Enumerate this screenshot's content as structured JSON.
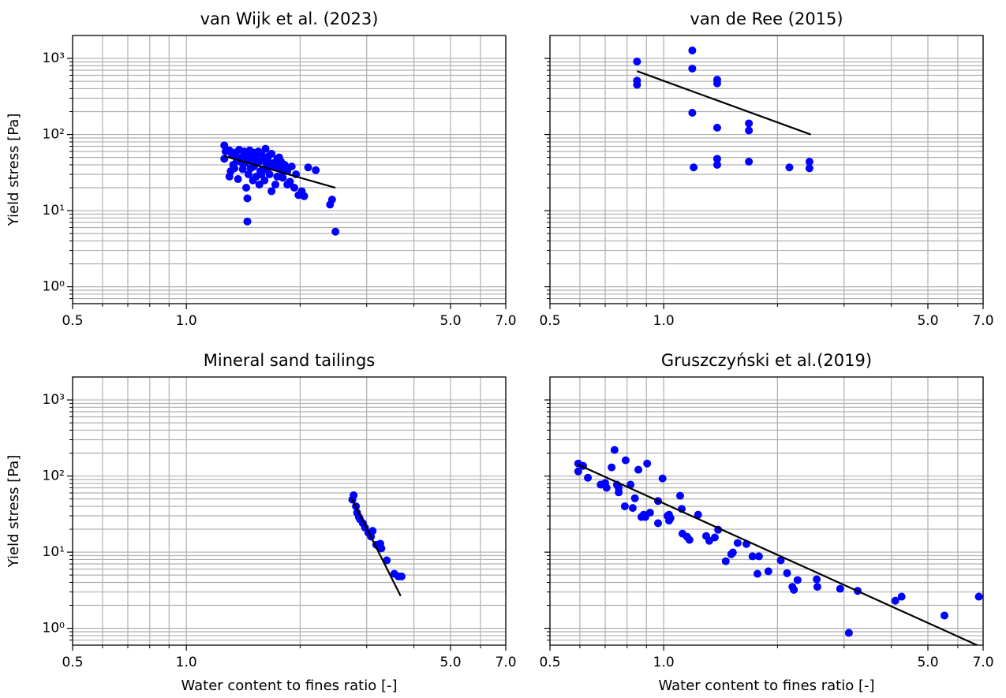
{
  "chart_data": [
    {
      "type": "scatter",
      "title": "van Wijk et al. (2023)",
      "ylabel": "Yield stress [Pa]",
      "xlog": true,
      "ylog": true,
      "grid": true,
      "ytick_labels": true,
      "xlim": [
        0.5,
        7.0
      ],
      "ylim": [
        0.6,
        2000
      ],
      "xticks": [
        0.5,
        {
          "value": 1,
          "label": "1.0"
        },
        {
          "value": 5,
          "label": "5.0"
        },
        {
          "value": 7,
          "label": "7.0"
        }
      ],
      "yticks": [
        {
          "value": 1,
          "label": "10⁰"
        },
        {
          "value": 10,
          "label": "10¹"
        },
        {
          "value": 100,
          "label": "10²"
        },
        {
          "value": 1000,
          "label": "10³"
        }
      ],
      "xminorticks": [
        0.6,
        0.7,
        0.8,
        0.9,
        2,
        3,
        4,
        6
      ],
      "yminorticks": [
        0.7,
        0.8,
        0.9,
        2,
        3,
        4,
        5,
        6,
        7,
        8,
        9,
        20,
        30,
        40,
        50,
        60,
        70,
        80,
        90,
        200,
        300,
        400,
        500,
        600,
        700,
        800,
        900
      ],
      "points": {
        "color": "#0000ff",
        "x": [
          1.26,
          1.27,
          1.3,
          1.32,
          1.33,
          1.35,
          1.36,
          1.38,
          1.4,
          1.41,
          1.42,
          1.43,
          1.45,
          1.46,
          1.47,
          1.48,
          1.5,
          1.51,
          1.52,
          1.53,
          1.55,
          1.56,
          1.57,
          1.58,
          1.6,
          1.61,
          1.62,
          1.63,
          1.65,
          1.66,
          1.68,
          1.7,
          1.72,
          1.74,
          1.76,
          1.78,
          1.8,
          1.82,
          1.85,
          1.88,
          1.9,
          1.93,
          1.95,
          1.98,
          2.02,
          2.05,
          1.3,
          1.34,
          1.37,
          1.4,
          1.44,
          1.48,
          1.52,
          1.56,
          1.6,
          1.64,
          1.68,
          1.72,
          1.76,
          1.8,
          1.85,
          1.35,
          1.42,
          1.5,
          1.58,
          1.66,
          1.74,
          1.31,
          1.45,
          1.62,
          1.26,
          1.45,
          2.1,
          2.2,
          2.4,
          2.43,
          2.48
        ],
        "y": [
          48,
          60,
          62,
          55,
          40,
          58,
          45,
          63,
          50,
          35,
          60,
          42,
          55,
          30,
          62,
          48,
          58,
          38,
          52,
          28,
          60,
          44,
          33,
          55,
          47,
          25,
          65,
          40,
          52,
          30,
          56,
          42,
          22,
          48,
          36,
          44,
          27,
          40,
          33,
          24,
          38,
          20,
          30,
          16,
          18,
          15.5,
          28,
          36,
          26,
          43,
          20,
          36,
          45,
          22,
          35,
          45,
          18,
          38,
          50,
          33,
          22,
          52,
          46,
          25,
          30,
          38,
          28,
          33,
          14.5,
          35,
          72,
          7.2,
          37,
          34,
          12,
          14,
          5.3
        ]
      },
      "fit": {
        "color": "#000000",
        "x": [
          1.26,
          2.48
        ],
        "y": [
          52,
          20
        ]
      }
    },
    {
      "type": "scatter",
      "title": "van de Ree (2015)",
      "xlog": true,
      "ylog": true,
      "grid": true,
      "ytick_labels": false,
      "xlim": [
        0.5,
        7.0
      ],
      "ylim": [
        0.6,
        2000
      ],
      "xticks": [
        0.5,
        {
          "value": 1,
          "label": "1.0"
        },
        {
          "value": 5,
          "label": "5.0"
        },
        {
          "value": 7,
          "label": "7.0"
        }
      ],
      "yticks": [
        1,
        10,
        100,
        1000
      ],
      "xminorticks": [
        0.6,
        0.7,
        0.8,
        0.9,
        2,
        3,
        4,
        6
      ],
      "yminorticks": [
        0.7,
        0.8,
        0.9,
        2,
        3,
        4,
        5,
        6,
        7,
        8,
        9,
        20,
        30,
        40,
        50,
        60,
        70,
        80,
        90,
        200,
        300,
        400,
        500,
        600,
        700,
        800,
        900
      ],
      "points": {
        "color": "#0000ff",
        "x": [
          0.85,
          0.85,
          0.85,
          1.19,
          1.19,
          1.19,
          1.2,
          1.385,
          1.385,
          1.385,
          1.385,
          1.385,
          1.68,
          1.68,
          1.68,
          2.15,
          2.43,
          2.43
        ],
        "y": [
          910,
          510,
          450,
          1270,
          735,
          193,
          37,
          525,
          470,
          123,
          48,
          40,
          140,
          113,
          44,
          37,
          44,
          36
        ]
      },
      "fit": {
        "color": "#000000",
        "x": [
          0.85,
          2.45
        ],
        "y": [
          680,
          100
        ]
      }
    },
    {
      "type": "scatter",
      "title": "Mineral sand tailings",
      "xlabel": "Water content to fines ratio [-]",
      "ylabel": "Yield stress [Pa]",
      "xlog": true,
      "ylog": true,
      "grid": true,
      "ytick_labels": true,
      "xlim": [
        0.5,
        7.0
      ],
      "ylim": [
        0.6,
        2000
      ],
      "xticks": [
        0.5,
        {
          "value": 1,
          "label": "1.0"
        },
        {
          "value": 5,
          "label": "5.0"
        },
        {
          "value": 7,
          "label": "7.0"
        }
      ],
      "yticks": [
        {
          "value": 1,
          "label": "10⁰"
        },
        {
          "value": 10,
          "label": "10¹"
        },
        {
          "value": 100,
          "label": "10²"
        },
        {
          "value": 1000,
          "label": "10³"
        }
      ],
      "xminorticks": [
        0.6,
        0.7,
        0.8,
        0.9,
        2,
        3,
        4,
        6
      ],
      "yminorticks": [
        0.7,
        0.8,
        0.9,
        2,
        3,
        4,
        5,
        6,
        7,
        8,
        9,
        20,
        30,
        40,
        50,
        60,
        70,
        80,
        90,
        200,
        300,
        400,
        500,
        600,
        700,
        800,
        900
      ],
      "points": {
        "color": "#0000ff",
        "x": [
          2.75,
          2.77,
          2.81,
          2.83,
          2.86,
          2.88,
          2.93,
          2.97,
          3.03,
          3.11,
          3.08,
          3.18,
          3.26,
          3.28,
          3.39,
          3.55,
          3.64,
          3.71
        ],
        "y": [
          49,
          56,
          40,
          33,
          29,
          27,
          24,
          21,
          18,
          19,
          16,
          12.5,
          12.9,
          11.2,
          7.8,
          5.2,
          4.8,
          4.8
        ]
      },
      "fit": {
        "color": "#000000",
        "x": [
          2.73,
          3.69
        ],
        "y": [
          52,
          2.66
        ]
      }
    },
    {
      "type": "scatter",
      "title": "Gruszczyński et al.(2019)",
      "xlabel": "Water content to fines ratio [-]",
      "xlog": true,
      "ylog": true,
      "grid": true,
      "ytick_labels": false,
      "xlim": [
        0.5,
        7.0
      ],
      "ylim": [
        0.6,
        2000
      ],
      "xticks": [
        0.5,
        {
          "value": 1,
          "label": "1.0"
        },
        {
          "value": 5,
          "label": "5.0"
        },
        {
          "value": 7,
          "label": "7.0"
        }
      ],
      "yticks": [
        1,
        10,
        100,
        1000
      ],
      "xminorticks": [
        0.6,
        0.7,
        0.8,
        0.9,
        2,
        3,
        4,
        6
      ],
      "yminorticks": [
        0.7,
        0.8,
        0.9,
        2,
        3,
        4,
        5,
        6,
        7,
        8,
        9,
        20,
        30,
        40,
        50,
        60,
        70,
        80,
        90,
        200,
        300,
        400,
        500,
        600,
        700,
        800,
        900
      ],
      "points": {
        "color": "#0000ff",
        "x": [
          0.594,
          0.594,
          0.612,
          0.63,
          0.681,
          0.7,
          0.706,
          0.728,
          0.741,
          0.752,
          0.76,
          0.76,
          0.789,
          0.793,
          0.817,
          0.828,
          0.839,
          0.857,
          0.873,
          0.885,
          0.894,
          0.904,
          0.92,
          0.966,
          0.966,
          0.993,
          1.023,
          1.033,
          1.033,
          1.042,
          1.105,
          1.116,
          1.121,
          1.153,
          1.17,
          1.233,
          1.295,
          1.32,
          1.365,
          1.393,
          1.459,
          1.509,
          1.524,
          1.569,
          1.655,
          1.718,
          1.77,
          1.786,
          1.892,
          2.04,
          2.12,
          2.19,
          2.21,
          2.26,
          2.54,
          2.55,
          2.93,
          3.09,
          3.26,
          4.1,
          4.26,
          5.53,
          6.82
        ],
        "y": [
          146,
          115,
          136,
          95,
          77,
          81,
          70,
          130,
          220,
          77,
          61,
          70,
          40,
          161,
          77,
          38,
          51,
          121,
          29,
          31,
          29,
          146,
          33,
          47,
          24,
          93,
          30,
          26,
          31,
          28,
          55,
          37,
          17.5,
          15.9,
          14.5,
          31,
          16.3,
          14.1,
          15.6,
          19.7,
          7.6,
          9.4,
          9.9,
          13.2,
          12.8,
          8.8,
          5.2,
          8.8,
          5.6,
          7.8,
          5.3,
          3.5,
          3.2,
          4.3,
          4.4,
          3.5,
          3.3,
          0.87,
          3.1,
          2.3,
          2.6,
          1.47,
          2.6
        ]
      },
      "fit": {
        "color": "#000000",
        "x": [
          0.59,
          6.8
        ],
        "y": [
          143,
          0.59
        ]
      }
    }
  ]
}
